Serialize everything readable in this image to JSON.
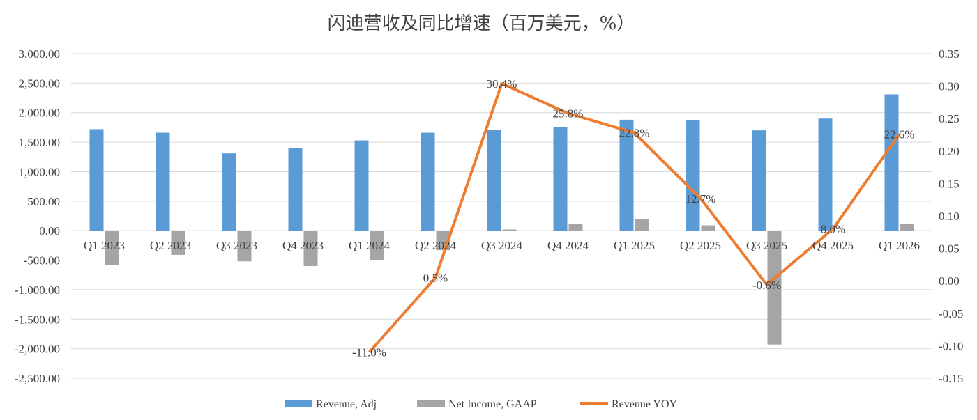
{
  "chart_data": {
    "type": "bar",
    "title": "闪迪营收及同比增速（百万美元，%）",
    "categories": [
      "Q1 2023",
      "Q2 2023",
      "Q3 2023",
      "Q4 2023",
      "Q1 2024",
      "Q2 2024",
      "Q3 2024",
      "Q4 2024",
      "Q1 2025",
      "Q2 2025",
      "Q3 2025",
      "Q4 2025",
      "Q1 2026"
    ],
    "series": [
      {
        "name": "Revenue, Adj",
        "type": "bar",
        "axis": "left",
        "color": "#5b9bd5",
        "values": [
          1720,
          1660,
          1310,
          1400,
          1530,
          1660,
          1710,
          1760,
          1880,
          1870,
          1700,
          1900,
          2310
        ]
      },
      {
        "name": "Net Income, GAAP",
        "type": "bar",
        "axis": "left",
        "color": "#a5a5a5",
        "values": [
          -580,
          -410,
          -520,
          -600,
          -500,
          -330,
          20,
          120,
          200,
          90,
          -1930,
          -10,
          110
        ]
      },
      {
        "name": "Revenue YOY",
        "type": "line",
        "axis": "right",
        "color": "#ed7d31",
        "values": [
          null,
          null,
          null,
          null,
          -0.11,
          0.005,
          0.304,
          0.258,
          0.228,
          0.127,
          -0.006,
          0.08,
          0.226
        ],
        "labels": [
          "",
          "",
          "",
          "",
          "-11.0%",
          "0.5%",
          "30.4%",
          "25.8%",
          "22.8%",
          "12.7%",
          "-0.6%",
          "8.0%",
          "22.6%"
        ]
      }
    ],
    "y_left": {
      "min": -2500,
      "max": 3000,
      "step": 500,
      "ticks": [
        "3,000.00",
        "2,500.00",
        "2,000.00",
        "1,500.00",
        "1,000.00",
        "500.00",
        "0.00",
        "-500.00",
        "-1,000.00",
        "-1,500.00",
        "-2,000.00",
        "-2,500.00"
      ]
    },
    "y_right": {
      "min": -0.15,
      "max": 0.35,
      "step": 0.05,
      "ticks": [
        "0.35",
        "0.30",
        "0.25",
        "0.20",
        "0.15",
        "0.10",
        "0.05",
        "0.00",
        "-0.05",
        "-0.10",
        "-0.15"
      ]
    },
    "grid": true,
    "legend": "bottom"
  }
}
